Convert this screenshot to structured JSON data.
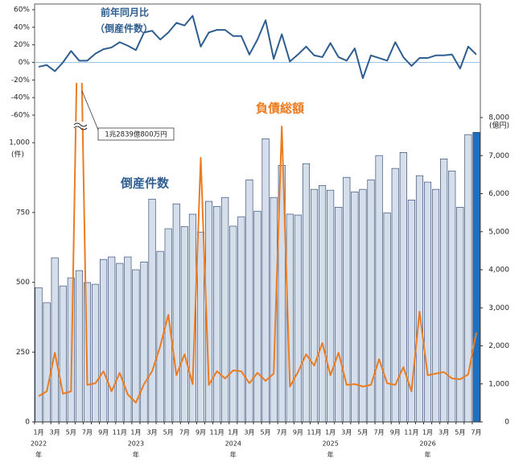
{
  "chart_data": [
    {
      "type": "bar",
      "categories": [
        "1月",
        null,
        "3月",
        null,
        "5月",
        null,
        "7月",
        null,
        "9月",
        null,
        "11月",
        null,
        "1月",
        null,
        "3月",
        null,
        "5月",
        null,
        "7月",
        null,
        "9月",
        null,
        "11月",
        null,
        "1月",
        null,
        "3月",
        null,
        "5月",
        null,
        "7月",
        null,
        "9月",
        null,
        "11月",
        null,
        "1月",
        null,
        "3月",
        null,
        "5月",
        null,
        "7月",
        null,
        "9月",
        null,
        "11月",
        null,
        "1月",
        null,
        "3月",
        null,
        "5月",
        null,
        "7月"
      ],
      "year_labels": [
        "2022",
        null,
        null,
        null,
        null,
        null,
        null,
        null,
        null,
        null,
        null,
        null,
        "2023",
        null,
        null,
        null,
        null,
        null,
        null,
        null,
        null,
        null,
        null,
        null,
        "2024",
        null,
        null,
        null,
        null,
        null,
        null,
        null,
        null,
        null,
        null,
        null,
        "2025",
        null,
        null,
        null,
        null,
        null,
        null,
        null,
        null,
        null,
        null,
        null,
        "2026",
        null,
        null,
        null,
        null,
        null,
        null
      ],
      "year_suffix": "年",
      "y_unit": "(件)",
      "y2_unit": "(億円)",
      "ylim": [
        0,
        1090
      ],
      "yticks": [
        0,
        250,
        500,
        750,
        {
          "value": 1000,
          "label": "1,000"
        }
      ],
      "y2lim": [
        0,
        8000
      ],
      "y2ticks": [
        0,
        {
          "value": 1000,
          "label": "1,000"
        },
        {
          "value": 2000,
          "label": "2,000"
        },
        {
          "value": 3000,
          "label": "3,000"
        },
        {
          "value": 4000,
          "label": "4,000"
        },
        {
          "value": 5000,
          "label": "5,000"
        },
        {
          "value": 6000,
          "label": "6,000"
        },
        {
          "value": 7000,
          "label": "7,000"
        },
        {
          "value": 8000,
          "label": "8,000"
        }
      ],
      "annotation": "1兆2839億800万円",
      "series": [
        {
          "name": "倒産件数",
          "type": "bar",
          "color": "#d5dfeb",
          "edge_color": "#1f3864",
          "highlight_color": "#1f6fbf",
          "values": [
            481,
            427,
            588,
            487,
            516,
            542,
            499,
            493,
            582,
            591,
            568,
            591,
            545,
            573,
            798,
            611,
            692,
            781,
            700,
            744,
            680,
            790,
            772,
            804,
            701,
            735,
            867,
            755,
            1014,
            804,
            919,
            744,
            741,
            925,
            833,
            847,
            830,
            769,
            876,
            824,
            833,
            867,
            954,
            749,
            908,
            965,
            795,
            882,
            859,
            833,
            942,
            899,
            769,
            1029,
            1037
          ]
        },
        {
          "name": "負債総額",
          "type": "line",
          "axis": "y2",
          "color": "#ec7c22",
          "values": [
            677,
            804,
            1820,
            741,
            804,
            12839.08,
            974,
            1016,
            1333,
            804,
            1291,
            720,
            508,
            995,
            1333,
            1989,
            2815,
            1228,
            1778,
            995,
            6942,
            974,
            1333,
            1143,
            1354,
            1333,
            1016,
            1291,
            1079,
            1270,
            7766,
            931,
            1312,
            1777,
            1481,
            2074,
            1227,
            1820,
            973,
            995,
            931,
            973,
            1650,
            1016,
            973,
            1439,
            804,
            2899,
            1227,
            1270,
            1312,
            1143,
            1121,
            1248,
            2349
          ]
        }
      ]
    },
    {
      "type": "line",
      "title": "前年同月比",
      "subtitle": "（倒産件数）",
      "ylim": [
        -60,
        60
      ],
      "yticks": [
        {
          "value": -60,
          "label": "-60%"
        },
        {
          "value": -40,
          "label": "-40%"
        },
        {
          "value": -20,
          "label": "-20%"
        },
        {
          "value": 0,
          "label": "0%"
        },
        {
          "value": 20,
          "label": "20%"
        },
        {
          "value": 40,
          "label": "40%"
        },
        {
          "value": 60,
          "label": "60%"
        }
      ],
      "series": [
        {
          "name": "前年同月比",
          "color": "#2e5d8f",
          "values": [
            -5,
            -3,
            -10,
            0,
            13,
            2,
            2,
            10,
            15,
            17,
            23,
            19,
            14,
            34,
            36,
            26,
            34,
            45,
            42,
            53,
            18,
            34,
            37,
            37,
            30,
            30,
            9,
            26,
            48,
            4,
            32,
            1,
            9,
            18,
            8,
            6,
            22,
            6,
            2,
            16,
            -18,
            8,
            5,
            2,
            23,
            6,
            -4,
            5,
            5,
            8,
            8,
            9,
            -7,
            18,
            9
          ]
        }
      ]
    }
  ]
}
